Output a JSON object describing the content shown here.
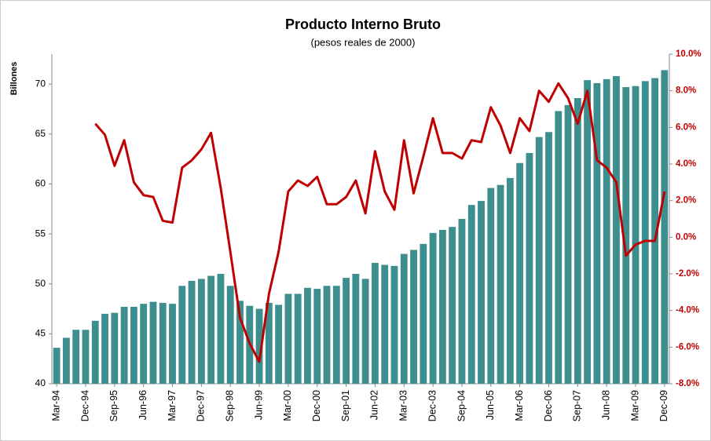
{
  "chart_data": {
    "type": "bar_line",
    "title": "Producto Interno Bruto",
    "subtitle": "(pesos reales de 2000)",
    "y_label": "Billones",
    "categories": [
      "Mar-94",
      null,
      null,
      "Dec-94",
      null,
      null,
      "Sep-95",
      null,
      null,
      "Jun-96",
      null,
      null,
      "Mar-97",
      null,
      null,
      "Dec-97",
      null,
      null,
      "Sep-98",
      null,
      null,
      "Jun-99",
      null,
      null,
      "Mar-00",
      null,
      null,
      "Dec-00",
      null,
      null,
      "Sep-01",
      null,
      null,
      "Jun-02",
      null,
      null,
      "Mar-03",
      null,
      null,
      "Dec-03",
      null,
      null,
      "Sep-04",
      null,
      null,
      "Jun-05",
      null,
      null,
      "Mar-06",
      null,
      null,
      "Dec-06",
      null,
      null,
      "Sep-07",
      null,
      null,
      "Jun-08",
      null,
      null,
      "Mar-09",
      null,
      null,
      "Dec-09"
    ],
    "series": [
      {
        "type": "bar",
        "color": "#3d8f8f",
        "values": [
          43.6,
          44.6,
          45.4,
          45.4,
          46.3,
          47.0,
          47.1,
          47.7,
          47.7,
          48.0,
          48.2,
          48.1,
          48.0,
          49.8,
          50.3,
          50.5,
          50.8,
          51.0,
          49.8,
          48.3,
          47.8,
          47.5,
          48.1,
          47.9,
          49.0,
          49.0,
          49.6,
          49.5,
          49.8,
          49.8,
          50.6,
          51.0,
          50.5,
          52.1,
          51.9,
          51.8,
          53.0,
          53.4,
          54.0,
          55.1,
          55.4,
          55.7,
          56.5,
          57.9,
          58.3,
          59.6,
          59.9,
          60.6,
          62.1,
          63.1,
          64.7,
          65.2,
          67.3,
          67.9,
          68.6,
          70.4,
          70.1,
          70.5,
          70.8,
          69.7,
          69.8,
          70.3,
          70.6,
          71.4
        ]
      },
      {
        "type": "line",
        "axis": "y2",
        "color": "#c00000",
        "values": [
          null,
          null,
          null,
          null,
          6.2,
          5.6,
          3.9,
          5.3,
          3.0,
          2.3,
          2.2,
          0.9,
          0.8,
          3.8,
          4.2,
          4.8,
          5.7,
          2.7,
          -0.8,
          -4.4,
          -5.8,
          -6.8,
          -3.1,
          -0.8,
          2.5,
          3.1,
          2.8,
          3.3,
          1.8,
          1.8,
          2.2,
          3.1,
          1.3,
          4.7,
          2.5,
          1.5,
          5.3,
          2.4,
          4.4,
          6.5,
          4.6,
          4.6,
          4.3,
          5.3,
          5.2,
          7.1,
          6.1,
          4.6,
          6.5,
          5.8,
          8.0,
          7.4,
          8.4,
          7.6,
          6.2,
          8.0,
          4.2,
          3.8,
          3.0,
          -1.0,
          -0.4,
          -0.2,
          -0.2,
          2.5
        ]
      }
    ],
    "ylim": [
      40,
      73
    ],
    "yticks": [
      40,
      45,
      50,
      55,
      60,
      65,
      70
    ],
    "y2lim": [
      -8,
      10
    ],
    "y2ticks": [
      {
        "value": -8,
        "label": "-8.0%"
      },
      {
        "value": -6,
        "label": "-6.0%"
      },
      {
        "value": -4,
        "label": "-4.0%"
      },
      {
        "value": -2,
        "label": "-2.0%"
      },
      {
        "value": 0,
        "label": "0.0%"
      },
      {
        "value": 2,
        "label": "2.0%"
      },
      {
        "value": 4,
        "label": "4.0%"
      },
      {
        "value": 6,
        "label": "6.0%"
      },
      {
        "value": 8,
        "label": "8.0%"
      },
      {
        "value": 10,
        "label": "10.0%"
      }
    ]
  }
}
